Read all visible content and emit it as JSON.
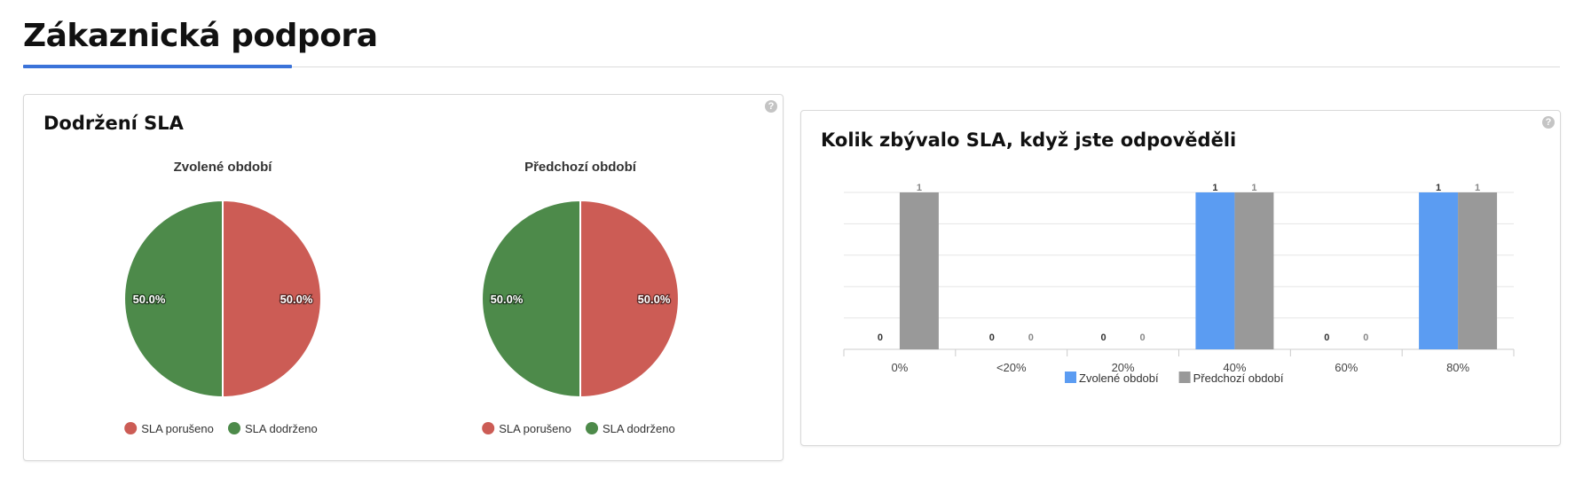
{
  "page": {
    "title": "Zákaznická podpora"
  },
  "sla_card": {
    "title": "Dodržení SLA",
    "help": "?"
  },
  "bar_card": {
    "title": "Kolik zbývalo SLA, když jste odpověděli",
    "help": "?"
  },
  "colors": {
    "violated": "#cc5c55",
    "kept": "#4d8a4a",
    "current": "#5b9cf2",
    "previous": "#999999",
    "accent": "#3b73d9"
  },
  "chart_data": [
    {
      "type": "pie",
      "title": "Zvolené období",
      "slices": [
        {
          "name": "SLA porušeno",
          "value": 50.0,
          "label": "50.0%"
        },
        {
          "name": "SLA dodrženo",
          "value": 50.0,
          "label": "50.0%"
        }
      ],
      "legend": "bottom"
    },
    {
      "type": "pie",
      "title": "Předchozí období",
      "slices": [
        {
          "name": "SLA porušeno",
          "value": 50.0,
          "label": "50.0%"
        },
        {
          "name": "SLA dodrženo",
          "value": 50.0,
          "label": "50.0%"
        }
      ],
      "legend": "bottom"
    },
    {
      "type": "bar",
      "categories": [
        "0%",
        "<20%",
        "20%",
        "40%",
        "60%",
        "80%"
      ],
      "series": [
        {
          "name": "Zvolené období",
          "values": [
            0,
            0,
            0,
            1,
            0,
            1
          ]
        },
        {
          "name": "Předchozí období",
          "values": [
            1,
            0,
            0,
            1,
            0,
            1
          ]
        }
      ],
      "ylim": [
        0,
        1
      ],
      "grid": true,
      "legend": "bottom"
    }
  ]
}
